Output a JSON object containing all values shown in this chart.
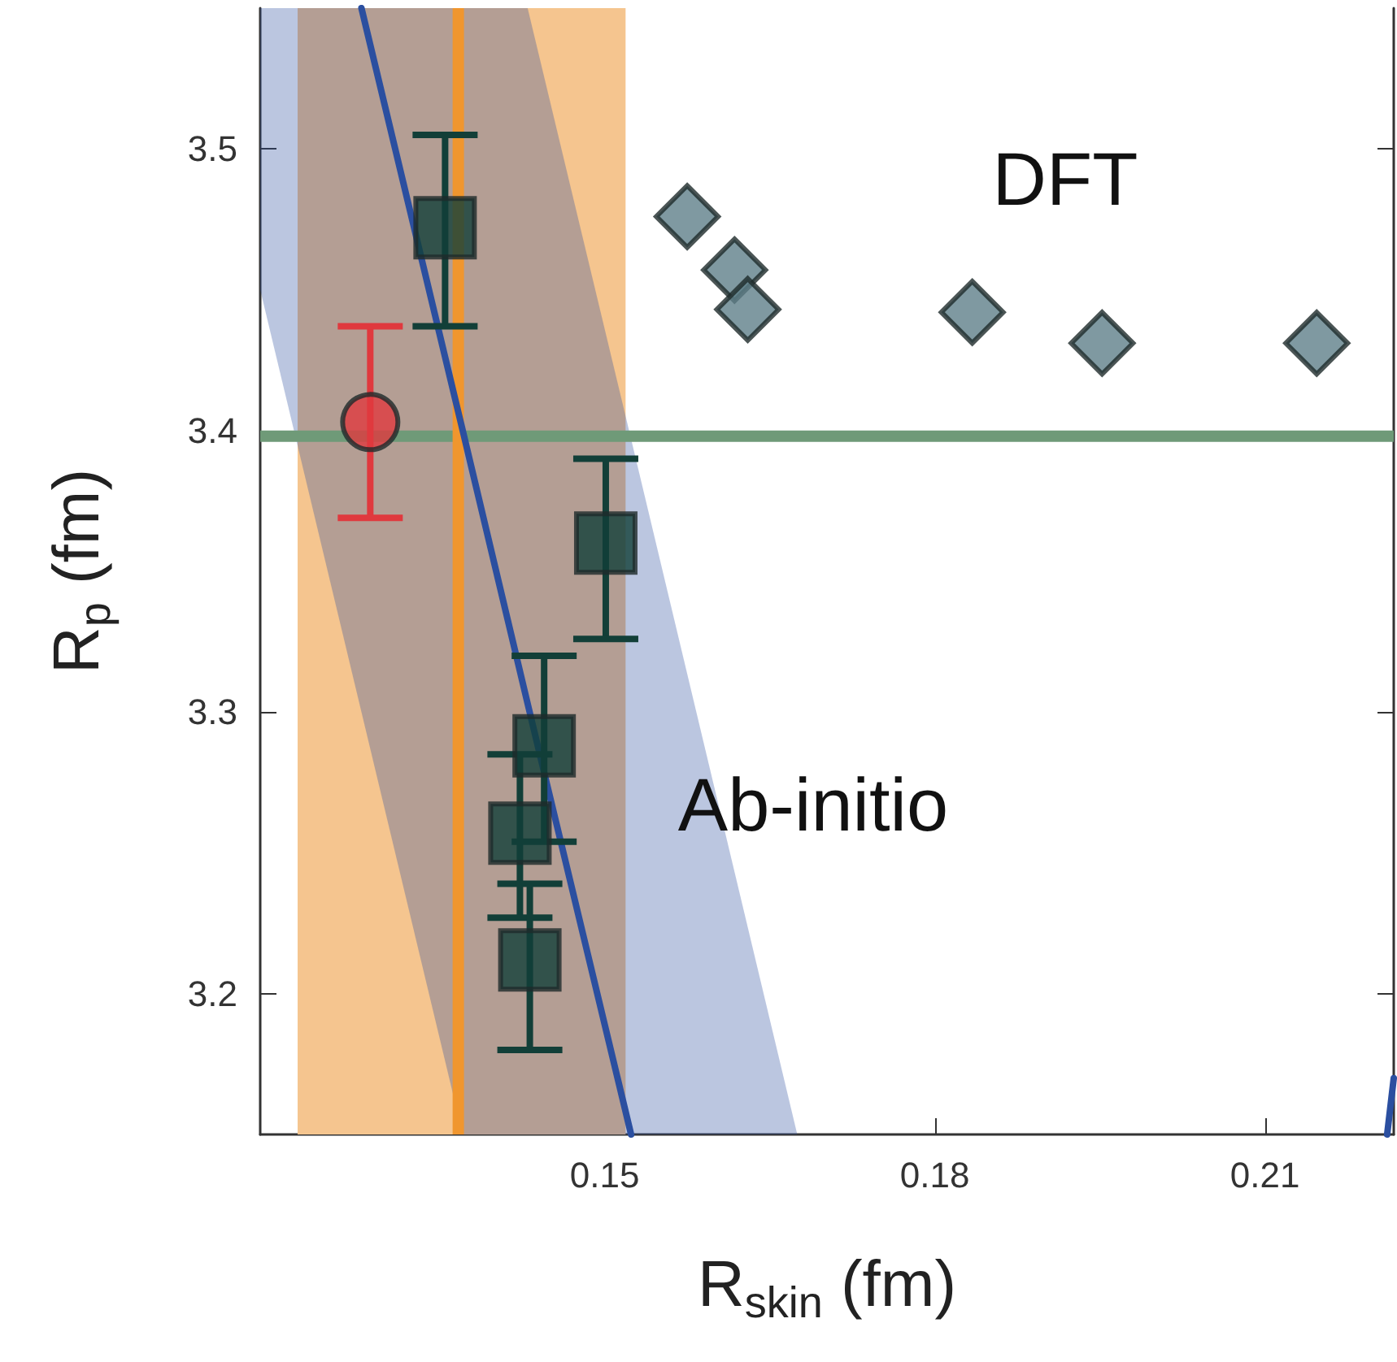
{
  "chart_data": {
    "type": "scatter",
    "xlabel": "R$_{skin}$ (fm)",
    "ylabel": "R$_{p}$ (fm)",
    "xlim": [
      0.1187,
      0.2217
    ],
    "xticks": [
      0.15,
      0.18,
      0.21
    ],
    "ylim": [
      3.15,
      3.55
    ],
    "yticks": [
      3.2,
      3.3,
      3.4,
      3.5
    ],
    "grid": false,
    "series": [
      {
        "type": "line",
        "color": "#2b4fa0",
        "marker": "none",
        "x": [
          0.1187,
          0.1279,
          0.1371,
          0.143,
          0.1524,
          0.1675
        ],
        "values": [
          null,
          3.55,
          3.4,
          3.303,
          3.15,
          null
        ],
        "lower": [
          3.45,
          3.3,
          3.15,
          3.15,
          3.15,
          3.15
        ],
        "upper": [
          3.55,
          3.55,
          3.55,
          3.55,
          3.397,
          3.15
        ]
      },
      {
        "type": "line",
        "color": "#2b4fa0",
        "marker": "none",
        "x": [
          0.2211,
          0.2217
        ],
        "values": [
          3.15,
          3.17
        ]
      },
      {
        "color": "#e0393e",
        "marker": "circle",
        "x": [
          0.1287
        ],
        "values": [
          3.403
        ],
        "errors": [
          [
            3.369,
            3.437
          ]
        ]
      },
      {
        "color": "#123f38",
        "marker": "square",
        "x": [
          0.1355,
          0.1501,
          0.1445,
          0.1423,
          0.1432
        ],
        "values": [
          3.472,
          3.36,
          3.288,
          3.257,
          3.212
        ],
        "errors": [
          [
            3.437,
            3.505
          ],
          [
            3.326,
            3.39
          ],
          [
            3.254,
            3.32
          ],
          [
            3.227,
            3.285
          ],
          [
            3.18,
            3.239
          ]
        ]
      },
      {
        "color": "#5f7f8a",
        "marker": "diamond",
        "x": [
          0.1575,
          0.1618,
          0.163,
          0.1834,
          0.1952,
          0.2147
        ],
        "values": [
          3.476,
          3.457,
          3.443,
          3.442,
          3.431,
          3.431
        ]
      }
    ],
    "ref_lines": [
      {
        "axis": "y",
        "value": 3.398,
        "color": "#6f9a78"
      },
      {
        "axis": "x",
        "value": 0.1367,
        "color": "#f0962e"
      }
    ],
    "bands": [
      {
        "axis": "x",
        "from": 0.1221,
        "to": 0.1519,
        "color": "#f5c58f"
      }
    ],
    "annotations": [
      "DFT",
      "Ab-initio"
    ]
  }
}
